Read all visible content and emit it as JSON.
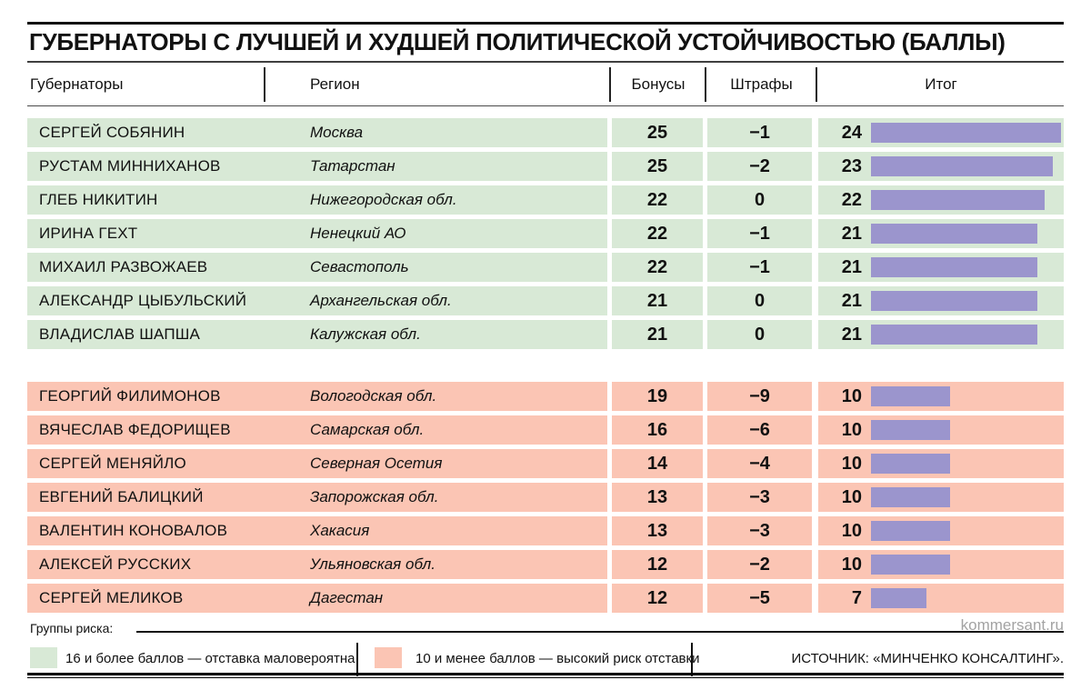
{
  "page": {
    "title": "ГУБЕРНАТОРЫ С ЛУЧШЕЙ И ХУДШЕЙ ПОЛИТИЧЕСКОЙ УСТОЙЧИВОСТЬЮ (БАЛЛЫ)",
    "watermark": "kommersant.ru",
    "source": "ИСТОЧНИК: «МИНЧЕНКО КОНСАЛТИНГ»."
  },
  "table": {
    "headers": {
      "governors": "Губернаторы",
      "region": "Регион",
      "bonuses": "Бонусы",
      "penalties": "Штрафы",
      "total": "Итог"
    },
    "top": [
      {
        "name": "СЕРГЕЙ СОБЯНИН",
        "region": "Москва",
        "bonus": "25",
        "penalty": "−1",
        "total": 24
      },
      {
        "name": "РУСТАМ МИННИХАНОВ",
        "region": "Татарстан",
        "bonus": "25",
        "penalty": "−2",
        "total": 23
      },
      {
        "name": "ГЛЕБ НИКИТИН",
        "region": "Нижегородская обл.",
        "bonus": "22",
        "penalty": "0",
        "total": 22
      },
      {
        "name": "ИРИНА ГЕХТ",
        "region": "Ненецкий АО",
        "bonus": "22",
        "penalty": "−1",
        "total": 21
      },
      {
        "name": "МИХАИЛ РАЗВОЖАЕВ",
        "region": "Севастополь",
        "bonus": "22",
        "penalty": "−1",
        "total": 21
      },
      {
        "name": "АЛЕКСАНДР ЦЫБУЛЬСКИЙ",
        "region": "Архангельская обл.",
        "bonus": "21",
        "penalty": "0",
        "total": 21
      },
      {
        "name": "ВЛАДИСЛАВ ШАПША",
        "region": "Калужская обл.",
        "bonus": "21",
        "penalty": "0",
        "total": 21
      }
    ],
    "bottom": [
      {
        "name": "ГЕОРГИЙ ФИЛИМОНОВ",
        "region": "Вологодская обл.",
        "bonus": "19",
        "penalty": "−9",
        "total": 10
      },
      {
        "name": "ВЯЧЕСЛАВ ФЕДОРИЩЕВ",
        "region": "Самарская обл.",
        "bonus": "16",
        "penalty": "−6",
        "total": 10
      },
      {
        "name": "СЕРГЕЙ МЕНЯЙЛО",
        "region": "Северная Осетия",
        "bonus": "14",
        "penalty": "−4",
        "total": 10
      },
      {
        "name": "ЕВГЕНИЙ БАЛИЦКИЙ",
        "region": "Запорожская обл.",
        "bonus": "13",
        "penalty": "−3",
        "total": 10
      },
      {
        "name": "ВАЛЕНТИН КОНОВАЛОВ",
        "region": "Хакасия",
        "bonus": "13",
        "penalty": "−3",
        "total": 10
      },
      {
        "name": "АЛЕКСЕЙ РУССКИХ",
        "region": "Ульяновская обл.",
        "bonus": "12",
        "penalty": "−2",
        "total": 10
      },
      {
        "name": "СЕРГЕЙ МЕЛИКОВ",
        "region": "Дагестан",
        "bonus": "12",
        "penalty": "−5",
        "total": 7
      }
    ]
  },
  "legend": {
    "label": "Группы риска:",
    "items": [
      {
        "swatch_color": "#d8e9d6",
        "text": "16 и более баллов — отставка маловероятна"
      },
      {
        "swatch_color": "#fbc5b4",
        "text": "10 и менее баллов — высокий риск отставки"
      }
    ]
  },
  "colors": {
    "low_risk_bg": "#d8e9d6",
    "high_risk_bg": "#fbc5b4",
    "bar": "#9b95cd",
    "watermark_gray": "#a3a3a3",
    "text": "#111111"
  },
  "chart_data": {
    "type": "bar",
    "orientation": "horizontal",
    "title": "ГУБЕРНАТОРЫ С ЛУЧШЕЙ И ХУДШЕЙ ПОЛИТИЧЕСКОЙ УСТОЙЧИВОСТЬЮ (БАЛЛЫ)",
    "categories": [
      "СЕРГЕЙ СОБЯНИН",
      "РУСТАМ МИННИХАНОВ",
      "ГЛЕБ НИКИТИН",
      "ИРИНА ГЕХТ",
      "МИХАИЛ РАЗВОЖАЕВ",
      "АЛЕКСАНДР ЦЫБУЛЬСКИЙ",
      "ВЛАДИСЛАВ ШАПША",
      "ГЕОРГИЙ ФИЛИМОНОВ",
      "ВЯЧЕСЛАВ ФЕДОРИЩЕВ",
      "СЕРГЕЙ МЕНЯЙЛО",
      "ЕВГЕНИЙ БАЛИЦКИЙ",
      "ВАЛЕНТИН КОНОВАЛОВ",
      "АЛЕКСЕЙ РУССКИХ",
      "СЕРГЕЙ МЕЛИКОВ"
    ],
    "regions": [
      "Москва",
      "Татарстан",
      "Нижегородская обл.",
      "Ненецкий АО",
      "Севастополь",
      "Архангельская обл.",
      "Калужская обл.",
      "Вологодская обл.",
      "Самарская обл.",
      "Северная Осетия",
      "Запорожская обл.",
      "Хакасия",
      "Ульяновская обл.",
      "Дагестан"
    ],
    "series": [
      {
        "name": "Бонусы",
        "values": [
          25,
          25,
          22,
          22,
          22,
          21,
          21,
          19,
          16,
          14,
          13,
          13,
          12,
          12
        ]
      },
      {
        "name": "Штрафы",
        "values": [
          -1,
          -2,
          0,
          -1,
          -1,
          0,
          0,
          -9,
          -6,
          -4,
          -3,
          -3,
          -2,
          -5
        ]
      },
      {
        "name": "Итог",
        "values": [
          24,
          23,
          22,
          21,
          21,
          21,
          21,
          10,
          10,
          10,
          10,
          10,
          10,
          7
        ]
      }
    ],
    "plotted_series": "Итог",
    "xlim": [
      0,
      25
    ],
    "grid": false,
    "legend_position": "bottom",
    "group_split": {
      "low_risk_indices": [
        0,
        1,
        2,
        3,
        4,
        5,
        6
      ],
      "high_risk_indices": [
        7,
        8,
        9,
        10,
        11,
        12,
        13
      ]
    }
  }
}
